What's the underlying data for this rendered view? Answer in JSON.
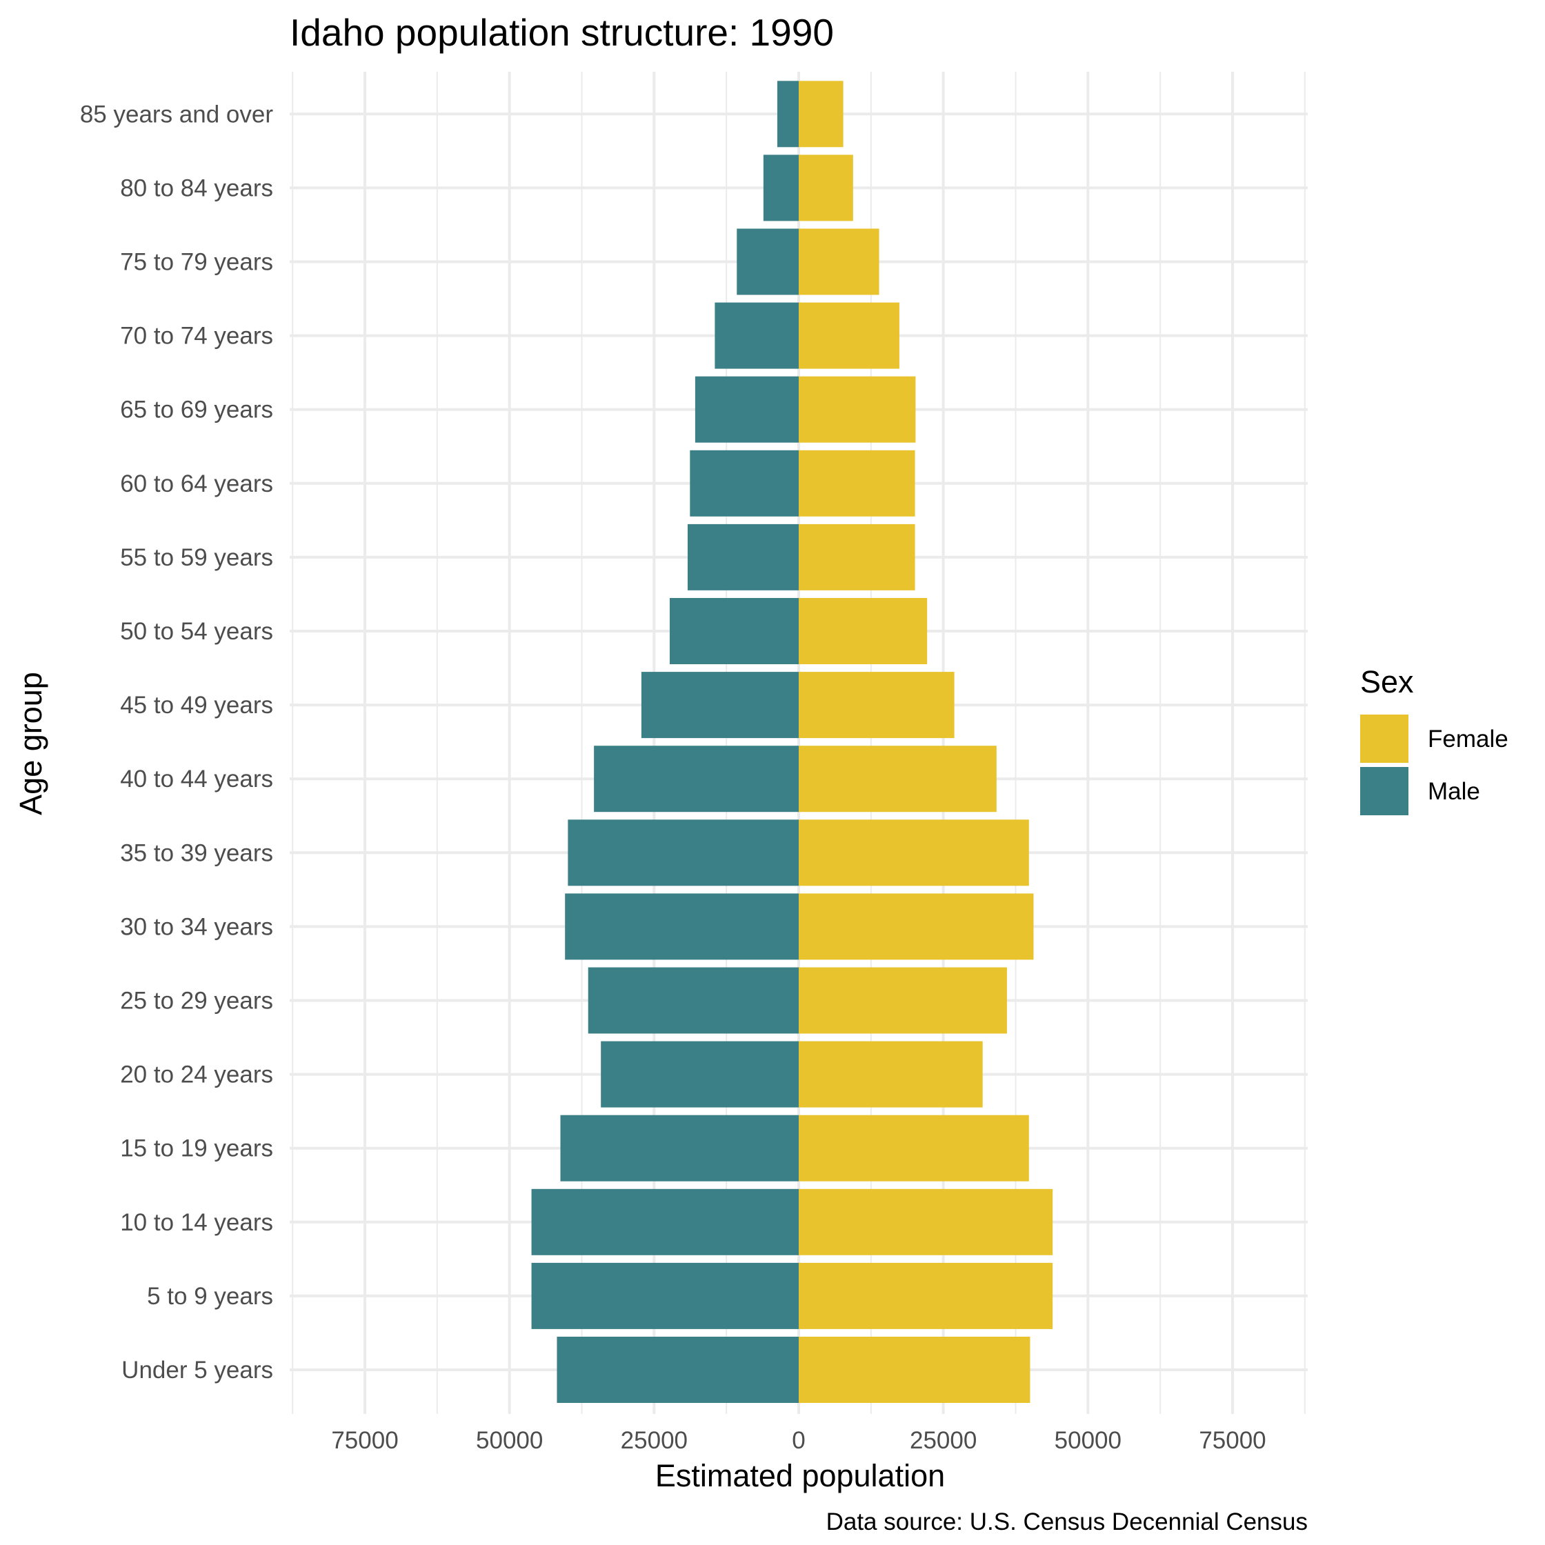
{
  "chart_data": {
    "type": "bar",
    "orientation": "horizontal",
    "title": "Idaho population structure: 1990",
    "xlabel": "Estimated population",
    "ylabel": "Age group",
    "caption": "Data source: U.S. Census Decennial Census",
    "xlim": [
      -88000,
      88000
    ],
    "xticks": [
      -75000,
      -50000,
      -25000,
      0,
      25000,
      50000,
      75000
    ],
    "xtick_labels": [
      "75000",
      "50000",
      "25000",
      "0",
      "25000",
      "50000",
      "75000"
    ],
    "grid": true,
    "legend": {
      "title": "Sex",
      "position": "right"
    },
    "categories": [
      "Under 5 years",
      "5 to 9 years",
      "10 to 14 years",
      "15 to 19 years",
      "20 to 24 years",
      "25 to 29 years",
      "30 to 34 years",
      "35 to 39 years",
      "40 to 44 years",
      "45 to 49 years",
      "50 to 54 years",
      "55 to 59 years",
      "60 to 64 years",
      "65 to 69 years",
      "70 to 74 years",
      "75 to 79 years",
      "80 to 84 years",
      "85 years and over"
    ],
    "series": [
      {
        "name": "Female",
        "color": "#E8C32E",
        "values": [
          40000,
          43900,
          43900,
          39800,
          31800,
          36000,
          40600,
          39800,
          34200,
          26900,
          22200,
          20100,
          20100,
          20200,
          17400,
          13900,
          9400,
          7700
        ]
      },
      {
        "name": "Male",
        "color": "#3C8087",
        "values": [
          -41800,
          -46200,
          -46200,
          -41200,
          -34200,
          -36400,
          -40400,
          -39900,
          -35400,
          -27200,
          -22300,
          -19200,
          -18800,
          -17900,
          -14500,
          -10700,
          -6100,
          -3700
        ]
      }
    ]
  }
}
